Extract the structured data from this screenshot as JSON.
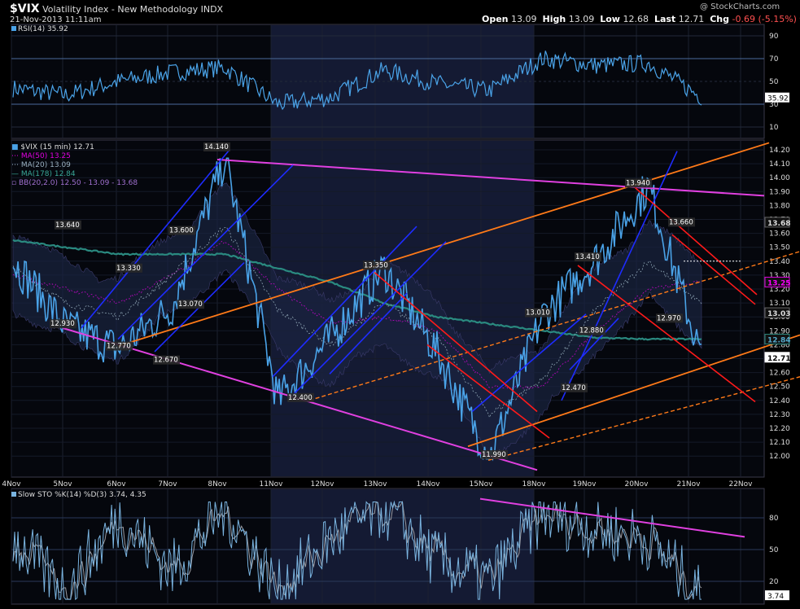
{
  "header": {
    "ticker": "$VIX",
    "name": "Volatility Index - New Methodology",
    "exchange": "INDX",
    "datetime": "21-Nov-2013 11:11am",
    "open_label": "Open",
    "open": "13.09",
    "high_label": "High",
    "high": "13.09",
    "low_label": "Low",
    "low": "12.68",
    "last_label": "Last",
    "last": "12.71",
    "chg_label": "Chg",
    "chg": "-0.69 (-5.15%)",
    "watermark": "@ StockCharts.com"
  },
  "colors": {
    "background": "#000000",
    "panel_bg": "#05070d",
    "shade": "#141a33",
    "price_line": "#4aa3e8",
    "channel_blue": "#1e2cff",
    "channel_red": "#ff1a1a",
    "channel_orange": "#ff7a18",
    "trend_magenta": "#e040e0",
    "ma50": "#e000e0",
    "ma20": "#8aa0b0",
    "ma178": "#2a8a80",
    "bb": "#8050b0",
    "rsi_line": "#4aa3e8",
    "sto_k": "#7ab4e0",
    "sto_d": "#9a9aa0"
  },
  "rsi": {
    "label": "RSI(14) 35.92",
    "ticks": [
      "90",
      "70",
      "50",
      "30",
      "10"
    ],
    "last_badge": "35.92"
  },
  "price": {
    "legend": [
      {
        "text": "$VIX (15 min) 12.71",
        "color": "#dddddd"
      },
      {
        "text": "MA(50) 13.25",
        "color": "#e000e0"
      },
      {
        "text": "MA(20) 13.09",
        "color": "#9ab0c0"
      },
      {
        "text": "MA(178) 12.84",
        "color": "#39a898"
      },
      {
        "text": "BB(20,2.0) 12.50 - 13.09 - 13.68",
        "color": "#a070d0"
      }
    ],
    "ticks": [
      "14.20",
      "14.10",
      "14.00",
      "13.90",
      "13.80",
      "13.70",
      "13.60",
      "13.50",
      "13.40",
      "13.30",
      "13.20",
      "13.10",
      "13.00",
      "12.90",
      "12.80",
      "12.70",
      "12.60",
      "12.50",
      "12.40",
      "12.30",
      "12.20",
      "12.10",
      "12.00"
    ],
    "badges": [
      {
        "text": "13.68",
        "style": "dark"
      },
      {
        "text": "13.25",
        "style": "magenta"
      },
      {
        "text": "13.03",
        "style": "dark"
      },
      {
        "text": "12.84",
        "style": "teal"
      },
      {
        "text": "12.71",
        "style": "white"
      }
    ],
    "annotations": [
      "14.140",
      "13.640",
      "13.330",
      "13.600",
      "13.070",
      "12.930",
      "12.770",
      "12.670",
      "13.350",
      "12.400",
      "13.010",
      "11.990",
      "13.940",
      "13.410",
      "13.660",
      "12.880",
      "12.970",
      "12.470"
    ]
  },
  "x_axis": {
    "labels": [
      "4Nov",
      "5Nov",
      "6Nov",
      "7Nov",
      "8Nov",
      "11Nov",
      "12Nov",
      "13Nov",
      "14Nov",
      "15Nov",
      "18Nov",
      "19Nov",
      "20Nov",
      "21Nov",
      "22Nov"
    ]
  },
  "sto": {
    "label": "Slow STO %K(14) %D(3) 3.74, 4.35",
    "ticks": [
      "80",
      "50",
      "20"
    ],
    "last_badge": "3.74"
  },
  "chart_data": [
    {
      "type": "line",
      "title": "RSI(14) 35.92",
      "ylim": [
        0,
        100
      ],
      "yticks": [
        90,
        70,
        50,
        30,
        10
      ],
      "reference_lines": [
        70,
        50,
        30
      ],
      "x": [
        "4Nov",
        "5Nov",
        "6Nov",
        "7Nov",
        "8Nov",
        "11Nov",
        "12Nov",
        "13Nov",
        "14Nov",
        "15Nov",
        "18Nov",
        "19Nov",
        "20Nov",
        "21Nov"
      ],
      "series": [
        {
          "name": "RSI(14)",
          "values": [
            44,
            38,
            50,
            58,
            62,
            30,
            36,
            60,
            48,
            42,
            70,
            64,
            66,
            36
          ]
        }
      ]
    },
    {
      "type": "line",
      "title": "$VIX (15 min) 12.71",
      "ylim": [
        11.9,
        14.3
      ],
      "x": [
        "4Nov",
        "5Nov",
        "6Nov",
        "7Nov",
        "8Nov",
        "11Nov",
        "12Nov",
        "13Nov",
        "14Nov",
        "15Nov",
        "18Nov",
        "19Nov",
        "20Nov",
        "21Nov"
      ],
      "series": [
        {
          "name": "$VIX (15 min) 12.71",
          "values": [
            13.4,
            12.93,
            12.77,
            13.07,
            14.14,
            12.4,
            12.85,
            13.35,
            12.75,
            11.99,
            13.01,
            13.41,
            13.94,
            12.71
          ]
        },
        {
          "name": "MA(50) 13.25",
          "values": [
            13.3,
            13.2,
            13.1,
            13.3,
            13.55,
            13.2,
            12.95,
            13.0,
            12.9,
            12.5,
            12.5,
            12.9,
            13.2,
            13.25
          ]
        },
        {
          "name": "MA(20) 13.09",
          "values": [
            13.35,
            13.1,
            13.0,
            13.3,
            13.65,
            13.05,
            12.8,
            13.1,
            12.85,
            12.3,
            12.55,
            13.05,
            13.4,
            13.09
          ]
        },
        {
          "name": "MA(178) 12.84",
          "values": [
            13.55,
            13.5,
            13.45,
            13.45,
            13.45,
            13.35,
            13.25,
            13.1,
            13.0,
            12.95,
            12.9,
            12.85,
            12.84,
            12.84
          ]
        }
      ]
    },
    {
      "type": "line",
      "title": "Slow STO %K(14) %D(3) 3.74, 4.35",
      "ylim": [
        0,
        100
      ],
      "yticks": [
        80,
        50,
        20
      ],
      "reference_lines": [
        80,
        50,
        20
      ],
      "x": [
        "4Nov",
        "5Nov",
        "6Nov",
        "7Nov",
        "8Nov",
        "11Nov",
        "12Nov",
        "13Nov",
        "14Nov",
        "15Nov",
        "18Nov",
        "19Nov",
        "20Nov",
        "21Nov"
      ],
      "series": [
        {
          "name": "%K(14)",
          "values": [
            60,
            10,
            80,
            30,
            90,
            10,
            60,
            90,
            40,
            20,
            85,
            70,
            60,
            3.74
          ]
        },
        {
          "name": "%D(3)",
          "values": [
            55,
            15,
            75,
            35,
            85,
            15,
            55,
            85,
            45,
            25,
            80,
            72,
            62,
            4.35
          ]
        }
      ]
    }
  ]
}
